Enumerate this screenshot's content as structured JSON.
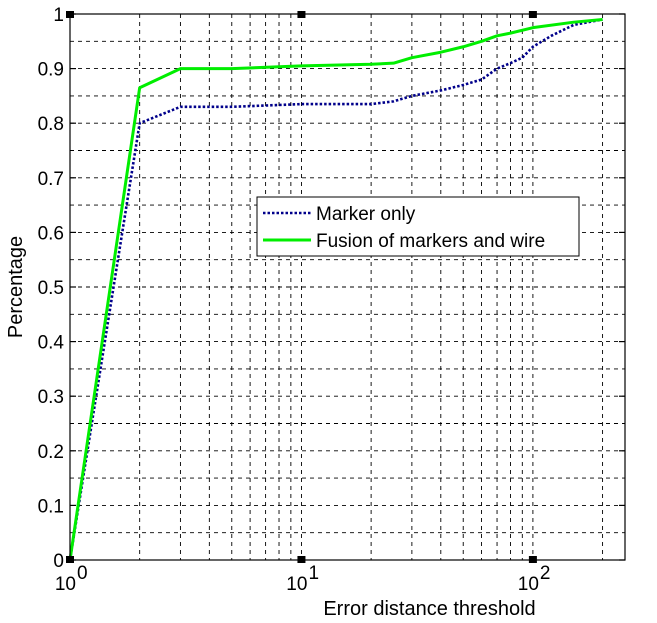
{
  "chart_data": {
    "type": "line",
    "xscale": "log",
    "xlim": [
      1,
      250
    ],
    "ylim": [
      0,
      1
    ],
    "xticks": [
      1,
      10,
      100
    ],
    "xtick_labels": [
      {
        "base": "10",
        "exp": "0"
      },
      {
        "base": "10",
        "exp": "1"
      },
      {
        "base": "10",
        "exp": "2"
      }
    ],
    "yticks": [
      0,
      0.1,
      0.2,
      0.3,
      0.4,
      0.5,
      0.6,
      0.7,
      0.8,
      0.9,
      1
    ],
    "ytick_labels": [
      "0",
      "0.1",
      "0.2",
      "0.3",
      "0.4",
      "0.5",
      "0.6",
      "0.7",
      "0.8",
      "0.9",
      "1"
    ],
    "xlabel": "Error distance threshold",
    "ylabel": "Percentage",
    "grid": true,
    "legend_position": "center-right",
    "series": [
      {
        "name": "Marker only",
        "color": "#00008b",
        "style": "dotted",
        "x": [
          1,
          2,
          3,
          5,
          10,
          20,
          25,
          30,
          40,
          50,
          60,
          70,
          80,
          90,
          100,
          120,
          150,
          200
        ],
        "y": [
          0,
          0.8,
          0.83,
          0.83,
          0.835,
          0.835,
          0.84,
          0.85,
          0.86,
          0.87,
          0.88,
          0.9,
          0.91,
          0.92,
          0.94,
          0.96,
          0.98,
          0.99
        ]
      },
      {
        "name": "Fusion of markers and wire",
        "color": "#00ee00",
        "style": "solid",
        "x": [
          1,
          2,
          3,
          5,
          10,
          20,
          25,
          30,
          40,
          50,
          60,
          70,
          80,
          100,
          150,
          200
        ],
        "y": [
          0,
          0.865,
          0.9,
          0.9,
          0.905,
          0.908,
          0.91,
          0.92,
          0.93,
          0.94,
          0.95,
          0.96,
          0.965,
          0.975,
          0.985,
          0.99
        ]
      }
    ]
  }
}
